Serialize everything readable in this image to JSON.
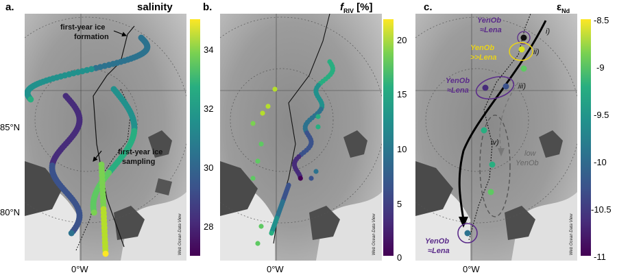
{
  "panels": [
    {
      "label": "a.",
      "title": "salinity"
    },
    {
      "label": "b.",
      "title_main": "f",
      "title_sub": "RIV",
      "title_unit": " [%]"
    },
    {
      "label": "c.",
      "title_main": "ε",
      "title_sub": "Nd"
    }
  ],
  "colorbars": [
    {
      "ticks": [
        "34",
        "32",
        "30",
        "28"
      ],
      "watermark": "Web Ocean Data View"
    },
    {
      "ticks": [
        "20",
        "15",
        "10",
        "5",
        "0"
      ],
      "watermark": "Web Ocean Data View"
    },
    {
      "ticks": [
        "-8.5",
        "-9",
        "-9.5",
        "-10",
        "-10.5",
        "-11"
      ],
      "watermark": "Web Ocean Data View"
    }
  ],
  "axes": {
    "lat_85": "85°N",
    "lat_80": "80°N",
    "lon_0": "0°W"
  },
  "annotations_a": {
    "ice_formation_1": "first-year ice",
    "ice_formation_2": "formation",
    "ice_sampling_1": "first-year ice",
    "ice_sampling_2": "sampling"
  },
  "annotations_c": {
    "yenob_lena_top_1": "YenOb",
    "yenob_lena_top_2": "≈Lena",
    "yenob_gg_lena_1": "YenOb",
    "yenob_gg_lena_2": ">>Lena",
    "yenob_lena_mid_1": "YenOb",
    "yenob_lena_mid_2": "≈Lena",
    "low_yenob_1": "low",
    "low_yenob_2": "YenOb",
    "yenob_lena_bot_1": "YenOb",
    "yenob_lena_bot_2": "≈Lena",
    "roman_i": "i)",
    "roman_ii": "ii)",
    "roman_iii": "iii)",
    "roman_iv": "iv)"
  },
  "colors": {
    "viridis_top": "#fde725",
    "viridis_bottom": "#440154",
    "purple_note": "#5b2c8a",
    "yellow_note": "#e8d21a",
    "grey_note": "#666666"
  }
}
